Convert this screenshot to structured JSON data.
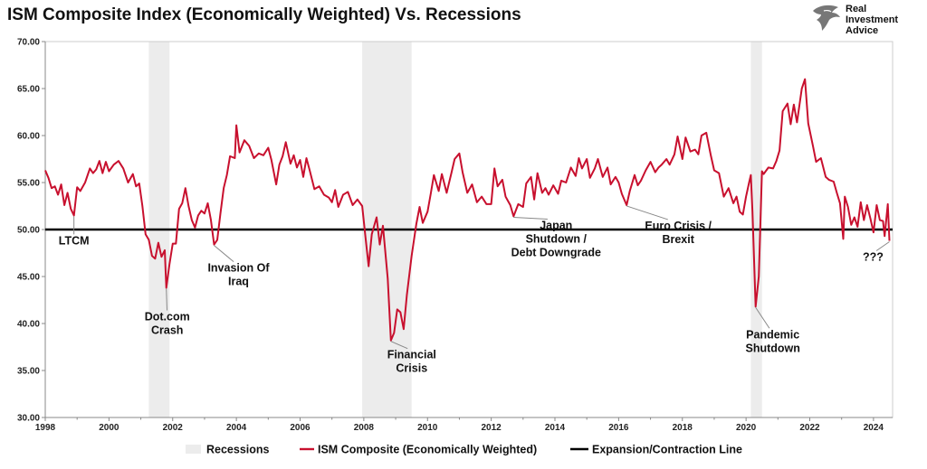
{
  "title": "ISM Composite Index (Economically Weighted) Vs. Recessions",
  "brand": {
    "lines": [
      "Real",
      "Investment",
      "Advice"
    ],
    "logo_icon": "eagle-head-logo-icon"
  },
  "colors": {
    "series": "#c8102e",
    "threshold": "#000000",
    "recession": "#ececec",
    "axis": "#888888",
    "grid": "#dddddd"
  },
  "chart_data": {
    "type": "line",
    "title": "ISM Composite Index (Economically Weighted) Vs. Recessions",
    "xlabel": "",
    "ylabel": "",
    "xlim": [
      1998.0,
      2024.6
    ],
    "ylim": [
      30,
      70
    ],
    "y_ticks": [
      "30.00",
      "35.00",
      "40.00",
      "45.00",
      "50.00",
      "55.00",
      "60.00",
      "65.00",
      "70.00"
    ],
    "x_ticks": [
      "1998",
      "2000",
      "2002",
      "2004",
      "2006",
      "2008",
      "2010",
      "2012",
      "2014",
      "2016",
      "2018",
      "2020",
      "2022",
      "2024"
    ],
    "grid": false,
    "legend_position": "bottom",
    "recessions": [
      [
        2001.25,
        2001.9
      ],
      [
        2007.95,
        2009.5
      ],
      [
        2020.15,
        2020.5
      ]
    ],
    "threshold": {
      "name": "Expansion/Contraction Line",
      "value": 50
    },
    "recession_label": "Recessions",
    "series": [
      {
        "name": "ISM Composite (Economically Weighted)",
        "points": [
          [
            1998.0,
            56.3
          ],
          [
            1998.1,
            55.5
          ],
          [
            1998.2,
            54.4
          ],
          [
            1998.3,
            54.6
          ],
          [
            1998.4,
            53.7
          ],
          [
            1998.5,
            54.8
          ],
          [
            1998.6,
            52.6
          ],
          [
            1998.7,
            53.9
          ],
          [
            1998.8,
            52.2
          ],
          [
            1998.9,
            51.5
          ],
          [
            1999.0,
            54.5
          ],
          [
            1999.1,
            54.1
          ],
          [
            1999.25,
            55.0
          ],
          [
            1999.4,
            56.5
          ],
          [
            1999.5,
            56.0
          ],
          [
            1999.6,
            56.4
          ],
          [
            1999.7,
            57.3
          ],
          [
            1999.8,
            56.0
          ],
          [
            1999.9,
            57.2
          ],
          [
            2000.0,
            56.2
          ],
          [
            2000.15,
            56.9
          ],
          [
            2000.3,
            57.3
          ],
          [
            2000.45,
            56.5
          ],
          [
            2000.6,
            55.0
          ],
          [
            2000.75,
            55.9
          ],
          [
            2000.85,
            54.6
          ],
          [
            2000.95,
            54.9
          ],
          [
            2001.05,
            52.5
          ],
          [
            2001.15,
            49.5
          ],
          [
            2001.25,
            48.9
          ],
          [
            2001.35,
            47.2
          ],
          [
            2001.45,
            46.9
          ],
          [
            2001.55,
            48.6
          ],
          [
            2001.65,
            47.1
          ],
          [
            2001.75,
            47.8
          ],
          [
            2001.8,
            43.8
          ],
          [
            2001.9,
            46.3
          ],
          [
            2002.0,
            48.5
          ],
          [
            2002.1,
            48.5
          ],
          [
            2002.2,
            52.2
          ],
          [
            2002.3,
            52.8
          ],
          [
            2002.4,
            54.4
          ],
          [
            2002.5,
            52.5
          ],
          [
            2002.6,
            51.0
          ],
          [
            2002.7,
            50.2
          ],
          [
            2002.8,
            51.5
          ],
          [
            2002.9,
            52.0
          ],
          [
            2003.0,
            51.7
          ],
          [
            2003.1,
            52.8
          ],
          [
            2003.2,
            51.0
          ],
          [
            2003.3,
            48.4
          ],
          [
            2003.4,
            48.9
          ],
          [
            2003.5,
            51.7
          ],
          [
            2003.6,
            54.4
          ],
          [
            2003.7,
            55.8
          ],
          [
            2003.8,
            57.8
          ],
          [
            2003.95,
            57.6
          ],
          [
            2004.0,
            61.1
          ],
          [
            2004.1,
            58.2
          ],
          [
            2004.25,
            59.5
          ],
          [
            2004.4,
            58.9
          ],
          [
            2004.55,
            57.6
          ],
          [
            2004.7,
            58.1
          ],
          [
            2004.85,
            57.9
          ],
          [
            2005.0,
            58.7
          ],
          [
            2005.1,
            57.4
          ],
          [
            2005.25,
            54.8
          ],
          [
            2005.35,
            56.9
          ],
          [
            2005.45,
            57.8
          ],
          [
            2005.55,
            59.3
          ],
          [
            2005.7,
            57.0
          ],
          [
            2005.8,
            57.9
          ],
          [
            2005.9,
            56.6
          ],
          [
            2006.0,
            57.4
          ],
          [
            2006.1,
            55.6
          ],
          [
            2006.2,
            57.6
          ],
          [
            2006.3,
            56.3
          ],
          [
            2006.45,
            54.3
          ],
          [
            2006.6,
            54.6
          ],
          [
            2006.75,
            53.7
          ],
          [
            2006.9,
            53.4
          ],
          [
            2007.0,
            52.9
          ],
          [
            2007.1,
            54.2
          ],
          [
            2007.2,
            52.4
          ],
          [
            2007.35,
            53.7
          ],
          [
            2007.5,
            54.0
          ],
          [
            2007.65,
            52.6
          ],
          [
            2007.8,
            53.2
          ],
          [
            2007.95,
            52.5
          ],
          [
            2008.05,
            49.3
          ],
          [
            2008.15,
            46.1
          ],
          [
            2008.25,
            49.5
          ],
          [
            2008.4,
            51.3
          ],
          [
            2008.5,
            48.4
          ],
          [
            2008.6,
            50.4
          ],
          [
            2008.75,
            44.8
          ],
          [
            2008.85,
            38.2
          ],
          [
            2008.95,
            39.0
          ],
          [
            2009.05,
            41.5
          ],
          [
            2009.15,
            41.2
          ],
          [
            2009.25,
            39.4
          ],
          [
            2009.35,
            43.0
          ],
          [
            2009.5,
            47.2
          ],
          [
            2009.65,
            50.6
          ],
          [
            2009.75,
            52.4
          ],
          [
            2009.85,
            50.7
          ],
          [
            2010.0,
            51.9
          ],
          [
            2010.1,
            53.8
          ],
          [
            2010.2,
            55.8
          ],
          [
            2010.35,
            54.1
          ],
          [
            2010.45,
            55.9
          ],
          [
            2010.6,
            53.9
          ],
          [
            2010.75,
            56.0
          ],
          [
            2010.85,
            57.5
          ],
          [
            2011.0,
            58.1
          ],
          [
            2011.1,
            56.1
          ],
          [
            2011.25,
            53.9
          ],
          [
            2011.4,
            54.8
          ],
          [
            2011.55,
            52.9
          ],
          [
            2011.7,
            53.5
          ],
          [
            2011.85,
            52.7
          ],
          [
            2012.0,
            52.7
          ],
          [
            2012.1,
            56.5
          ],
          [
            2012.2,
            54.6
          ],
          [
            2012.35,
            55.3
          ],
          [
            2012.45,
            53.5
          ],
          [
            2012.6,
            52.6
          ],
          [
            2012.7,
            51.4
          ],
          [
            2012.85,
            52.7
          ],
          [
            2013.0,
            52.4
          ],
          [
            2013.1,
            54.9
          ],
          [
            2013.25,
            55.6
          ],
          [
            2013.35,
            53.2
          ],
          [
            2013.45,
            56.0
          ],
          [
            2013.6,
            53.9
          ],
          [
            2013.7,
            54.4
          ],
          [
            2013.8,
            53.7
          ],
          [
            2013.95,
            54.7
          ],
          [
            2014.1,
            53.8
          ],
          [
            2014.2,
            55.2
          ],
          [
            2014.35,
            55.0
          ],
          [
            2014.5,
            56.6
          ],
          [
            2014.65,
            55.7
          ],
          [
            2014.75,
            57.6
          ],
          [
            2014.85,
            56.5
          ],
          [
            2015.0,
            57.5
          ],
          [
            2015.1,
            55.5
          ],
          [
            2015.25,
            56.5
          ],
          [
            2015.35,
            57.5
          ],
          [
            2015.5,
            55.6
          ],
          [
            2015.65,
            56.6
          ],
          [
            2015.75,
            54.8
          ],
          [
            2015.9,
            55.6
          ],
          [
            2016.0,
            55.0
          ],
          [
            2016.1,
            53.8
          ],
          [
            2016.25,
            52.6
          ],
          [
            2016.35,
            54.1
          ],
          [
            2016.5,
            55.8
          ],
          [
            2016.6,
            54.7
          ],
          [
            2016.7,
            55.2
          ],
          [
            2016.85,
            56.3
          ],
          [
            2017.0,
            57.2
          ],
          [
            2017.15,
            56.1
          ],
          [
            2017.25,
            56.6
          ],
          [
            2017.35,
            56.9
          ],
          [
            2017.5,
            57.5
          ],
          [
            2017.6,
            56.9
          ],
          [
            2017.75,
            58.0
          ],
          [
            2017.85,
            59.9
          ],
          [
            2018.0,
            57.5
          ],
          [
            2018.1,
            59.8
          ],
          [
            2018.25,
            58.3
          ],
          [
            2018.4,
            58.5
          ],
          [
            2018.5,
            58.0
          ],
          [
            2018.6,
            60.0
          ],
          [
            2018.75,
            60.3
          ],
          [
            2018.9,
            57.8
          ],
          [
            2019.0,
            56.3
          ],
          [
            2019.15,
            56.0
          ],
          [
            2019.3,
            53.5
          ],
          [
            2019.45,
            54.4
          ],
          [
            2019.6,
            52.8
          ],
          [
            2019.7,
            53.5
          ],
          [
            2019.8,
            51.9
          ],
          [
            2019.9,
            51.6
          ],
          [
            2020.0,
            53.5
          ],
          [
            2020.1,
            55.1
          ],
          [
            2020.15,
            55.8
          ],
          [
            2020.2,
            51.9
          ],
          [
            2020.3,
            41.8
          ],
          [
            2020.4,
            45.0
          ],
          [
            2020.5,
            56.2
          ],
          [
            2020.55,
            55.9
          ],
          [
            2020.7,
            56.6
          ],
          [
            2020.85,
            56.5
          ],
          [
            2020.95,
            57.3
          ],
          [
            2021.05,
            58.4
          ],
          [
            2021.15,
            62.6
          ],
          [
            2021.3,
            63.4
          ],
          [
            2021.4,
            61.2
          ],
          [
            2021.5,
            63.3
          ],
          [
            2021.6,
            61.4
          ],
          [
            2021.75,
            65.0
          ],
          [
            2021.85,
            66.0
          ],
          [
            2021.95,
            61.3
          ],
          [
            2022.1,
            58.9
          ],
          [
            2022.2,
            57.2
          ],
          [
            2022.35,
            57.6
          ],
          [
            2022.5,
            55.6
          ],
          [
            2022.6,
            55.3
          ],
          [
            2022.75,
            55.1
          ],
          [
            2022.85,
            53.9
          ],
          [
            2022.95,
            52.8
          ],
          [
            2023.05,
            49.0
          ],
          [
            2023.1,
            53.5
          ],
          [
            2023.2,
            52.4
          ],
          [
            2023.3,
            50.5
          ],
          [
            2023.4,
            51.3
          ],
          [
            2023.5,
            50.3
          ],
          [
            2023.6,
            52.9
          ],
          [
            2023.7,
            51.0
          ],
          [
            2023.8,
            52.6
          ],
          [
            2023.9,
            51.2
          ],
          [
            2024.0,
            49.7
          ],
          [
            2024.1,
            52.6
          ],
          [
            2024.2,
            51.0
          ],
          [
            2024.3,
            50.9
          ],
          [
            2024.35,
            49.3
          ],
          [
            2024.45,
            52.7
          ],
          [
            2024.5,
            48.8
          ]
        ]
      }
    ],
    "annotations": [
      {
        "lines": [
          "LTCM"
        ],
        "point": [
          1998.9,
          51.5
        ]
      },
      {
        "lines": [
          "Dot.com",
          "Crash"
        ],
        "point": [
          2001.8,
          43.8
        ]
      },
      {
        "lines": [
          "Invasion Of",
          "Iraq"
        ],
        "point": [
          2003.3,
          48.4
        ]
      },
      {
        "lines": [
          "Financial",
          "Crisis"
        ],
        "point": [
          2008.85,
          38.2
        ]
      },
      {
        "lines": [
          "Japan",
          "Shutdown /",
          "Debt Downgrade"
        ],
        "point": [
          2012.7,
          51.4
        ]
      },
      {
        "lines": [
          "Euro Crisis /",
          "Brexit"
        ],
        "point": [
          2016.25,
          52.6
        ]
      },
      {
        "lines": [
          "Pandemic",
          "Shutdown"
        ],
        "point": [
          2020.3,
          41.8
        ]
      },
      {
        "lines": [
          "???"
        ],
        "point": [
          2024.5,
          48.8
        ]
      }
    ]
  }
}
